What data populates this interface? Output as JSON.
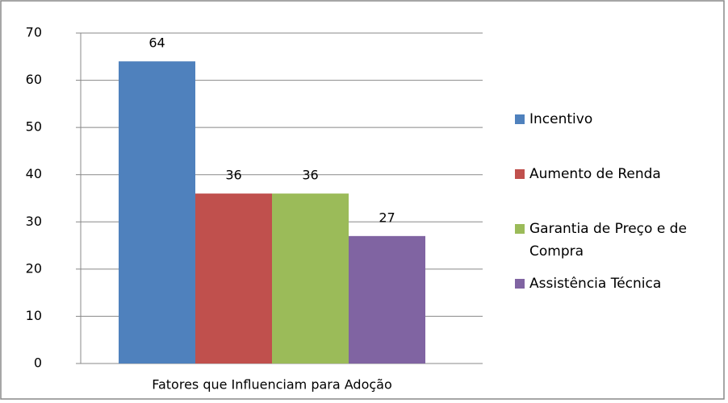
{
  "chart_data": {
    "type": "bar",
    "categories": [
      "Fatores que Influenciam para Adoção"
    ],
    "series": [
      {
        "name": "Incentivo",
        "color": "#4f81bd",
        "values": [
          64
        ]
      },
      {
        "name": "Aumento de Renda",
        "color": "#c0504d",
        "values": [
          36
        ]
      },
      {
        "name": "Garantia de Preço e de Compra",
        "color": "#9bbb59",
        "values": [
          36
        ]
      },
      {
        "name": "Assistência Técnica",
        "color": "#8064a2",
        "values": [
          27
        ]
      }
    ],
    "ylim": [
      0,
      70
    ],
    "yticks": [
      0,
      10,
      20,
      30,
      40,
      50,
      60,
      70
    ],
    "grid": true,
    "legend": "right"
  }
}
